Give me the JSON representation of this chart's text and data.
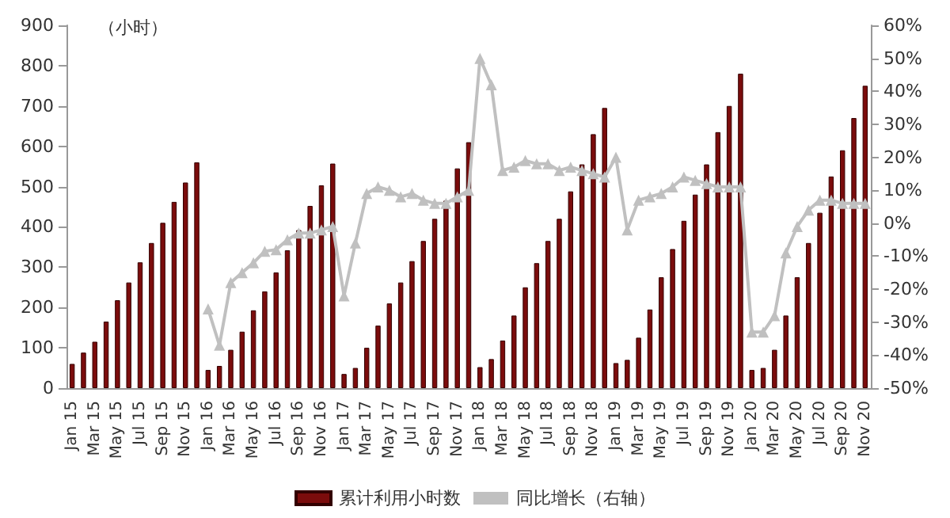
{
  "chart_data": {
    "type": "bar",
    "categories": [
      "Jan 15",
      null,
      "Mar 15",
      null,
      "May 15",
      null,
      "Jul 15",
      null,
      "Sep 15",
      null,
      "Nov 15",
      null,
      "Jan 16",
      null,
      "Mar 16",
      null,
      "May 16",
      null,
      "Jul 16",
      null,
      "Sep 16",
      null,
      "Nov 16",
      null,
      "Jan 17",
      null,
      "Mar 17",
      null,
      "May 17",
      null,
      "Jul 17",
      null,
      "Sep 17",
      null,
      "Nov 17",
      null,
      "Jan 18",
      null,
      "Mar 18",
      null,
      "May 18",
      null,
      "Jul 18",
      null,
      "Sep 18",
      null,
      "Nov 18",
      null,
      "Jan 19",
      null,
      "Mar 19",
      null,
      "May 19",
      null,
      "Jul 19",
      null,
      "Sep 19",
      null,
      "Nov 19",
      null,
      "Jan 20",
      null,
      "Mar 20",
      null,
      "May 20",
      null,
      "Jul 20",
      null,
      "Sep 20",
      null,
      "Nov 20"
    ],
    "series": [
      {
        "name": "累计利用小时数",
        "color": "#7b0c0c",
        "values": [
          60,
          88,
          115,
          165,
          218,
          262,
          312,
          360,
          410,
          462,
          510,
          560,
          45,
          55,
          95,
          140,
          193,
          240,
          287,
          342,
          392,
          452,
          503,
          557,
          35,
          50,
          100,
          155,
          210,
          262,
          315,
          365,
          420,
          465,
          545,
          610,
          52,
          72,
          118,
          180,
          250,
          310,
          365,
          420,
          488,
          555,
          630,
          695,
          62,
          70,
          125,
          195,
          275,
          345,
          415,
          480,
          555,
          635,
          700,
          780,
          45,
          50,
          95,
          180,
          275,
          360,
          435,
          525,
          590,
          670,
          750
        ]
      },
      {
        "name": "同比增长（右轴）",
        "type": "line",
        "axis": "y2",
        "color": "#c0c0c0",
        "values": [
          null,
          null,
          null,
          null,
          null,
          null,
          null,
          null,
          null,
          null,
          null,
          null,
          -26,
          -37,
          -18,
          -15,
          -12,
          -8.5,
          -8,
          -5,
          -3,
          -3,
          -2,
          -1,
          -22,
          -6,
          9,
          11,
          10,
          8,
          9,
          7,
          6,
          6,
          8,
          10,
          50,
          42,
          16,
          17,
          19,
          18,
          18,
          16,
          17,
          16,
          15,
          14,
          20,
          -2,
          7,
          8,
          9,
          11,
          14,
          13,
          12,
          11,
          11,
          11,
          -33,
          -33,
          -28,
          -9,
          -1,
          4,
          7,
          7,
          6,
          6,
          6
        ]
      }
    ],
    "ylim": [
      0,
      900
    ],
    "yticks": [
      0,
      100,
      200,
      300,
      400,
      500,
      600,
      700,
      800,
      900
    ],
    "y2lim": [
      -50,
      60
    ],
    "y2ticks": [
      {
        "value": -50,
        "label": "-50%"
      },
      {
        "value": -40,
        "label": "-40%"
      },
      {
        "value": -30,
        "label": "-30%"
      },
      {
        "value": -20,
        "label": "-20%"
      },
      {
        "value": -10,
        "label": "-10%"
      },
      {
        "value": 0,
        "label": "0%"
      },
      {
        "value": 10,
        "label": "10%"
      },
      {
        "value": 20,
        "label": "20%"
      },
      {
        "value": 30,
        "label": "30%"
      },
      {
        "value": 40,
        "label": "40%"
      },
      {
        "value": 50,
        "label": "50%"
      },
      {
        "value": 60,
        "label": "60%"
      }
    ],
    "annotations": [
      "（小时）"
    ],
    "legend": "bottom",
    "marker": "triangle",
    "grid": false
  }
}
